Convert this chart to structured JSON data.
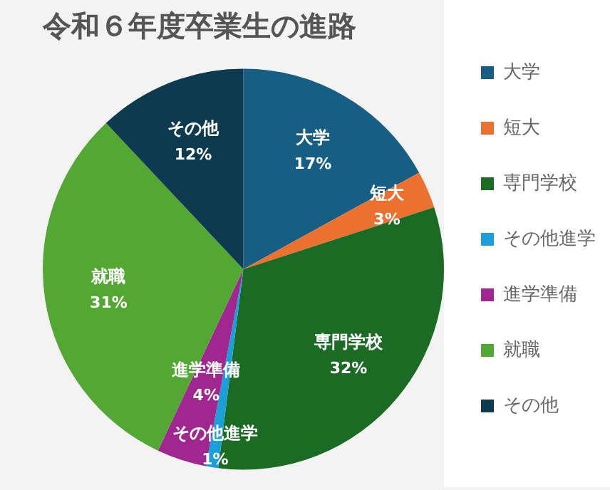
{
  "chart_data": {
    "type": "pie",
    "title": "令和６年度卒業生の進路",
    "categories": [
      "大学",
      "短大",
      "専門学校",
      "その他進学",
      "進学準備",
      "就職",
      "その他"
    ],
    "values": [
      17,
      3,
      32,
      1,
      4,
      31,
      12
    ],
    "colors": [
      "#175e84",
      "#ea7130",
      "#1b6b25",
      "#1a9fd9",
      "#a0278f",
      "#52a832",
      "#0e3a50"
    ],
    "value_labels": [
      "17%",
      "3%",
      "32%",
      "1%",
      "4%",
      "31%",
      "12%"
    ],
    "legend": "right"
  }
}
